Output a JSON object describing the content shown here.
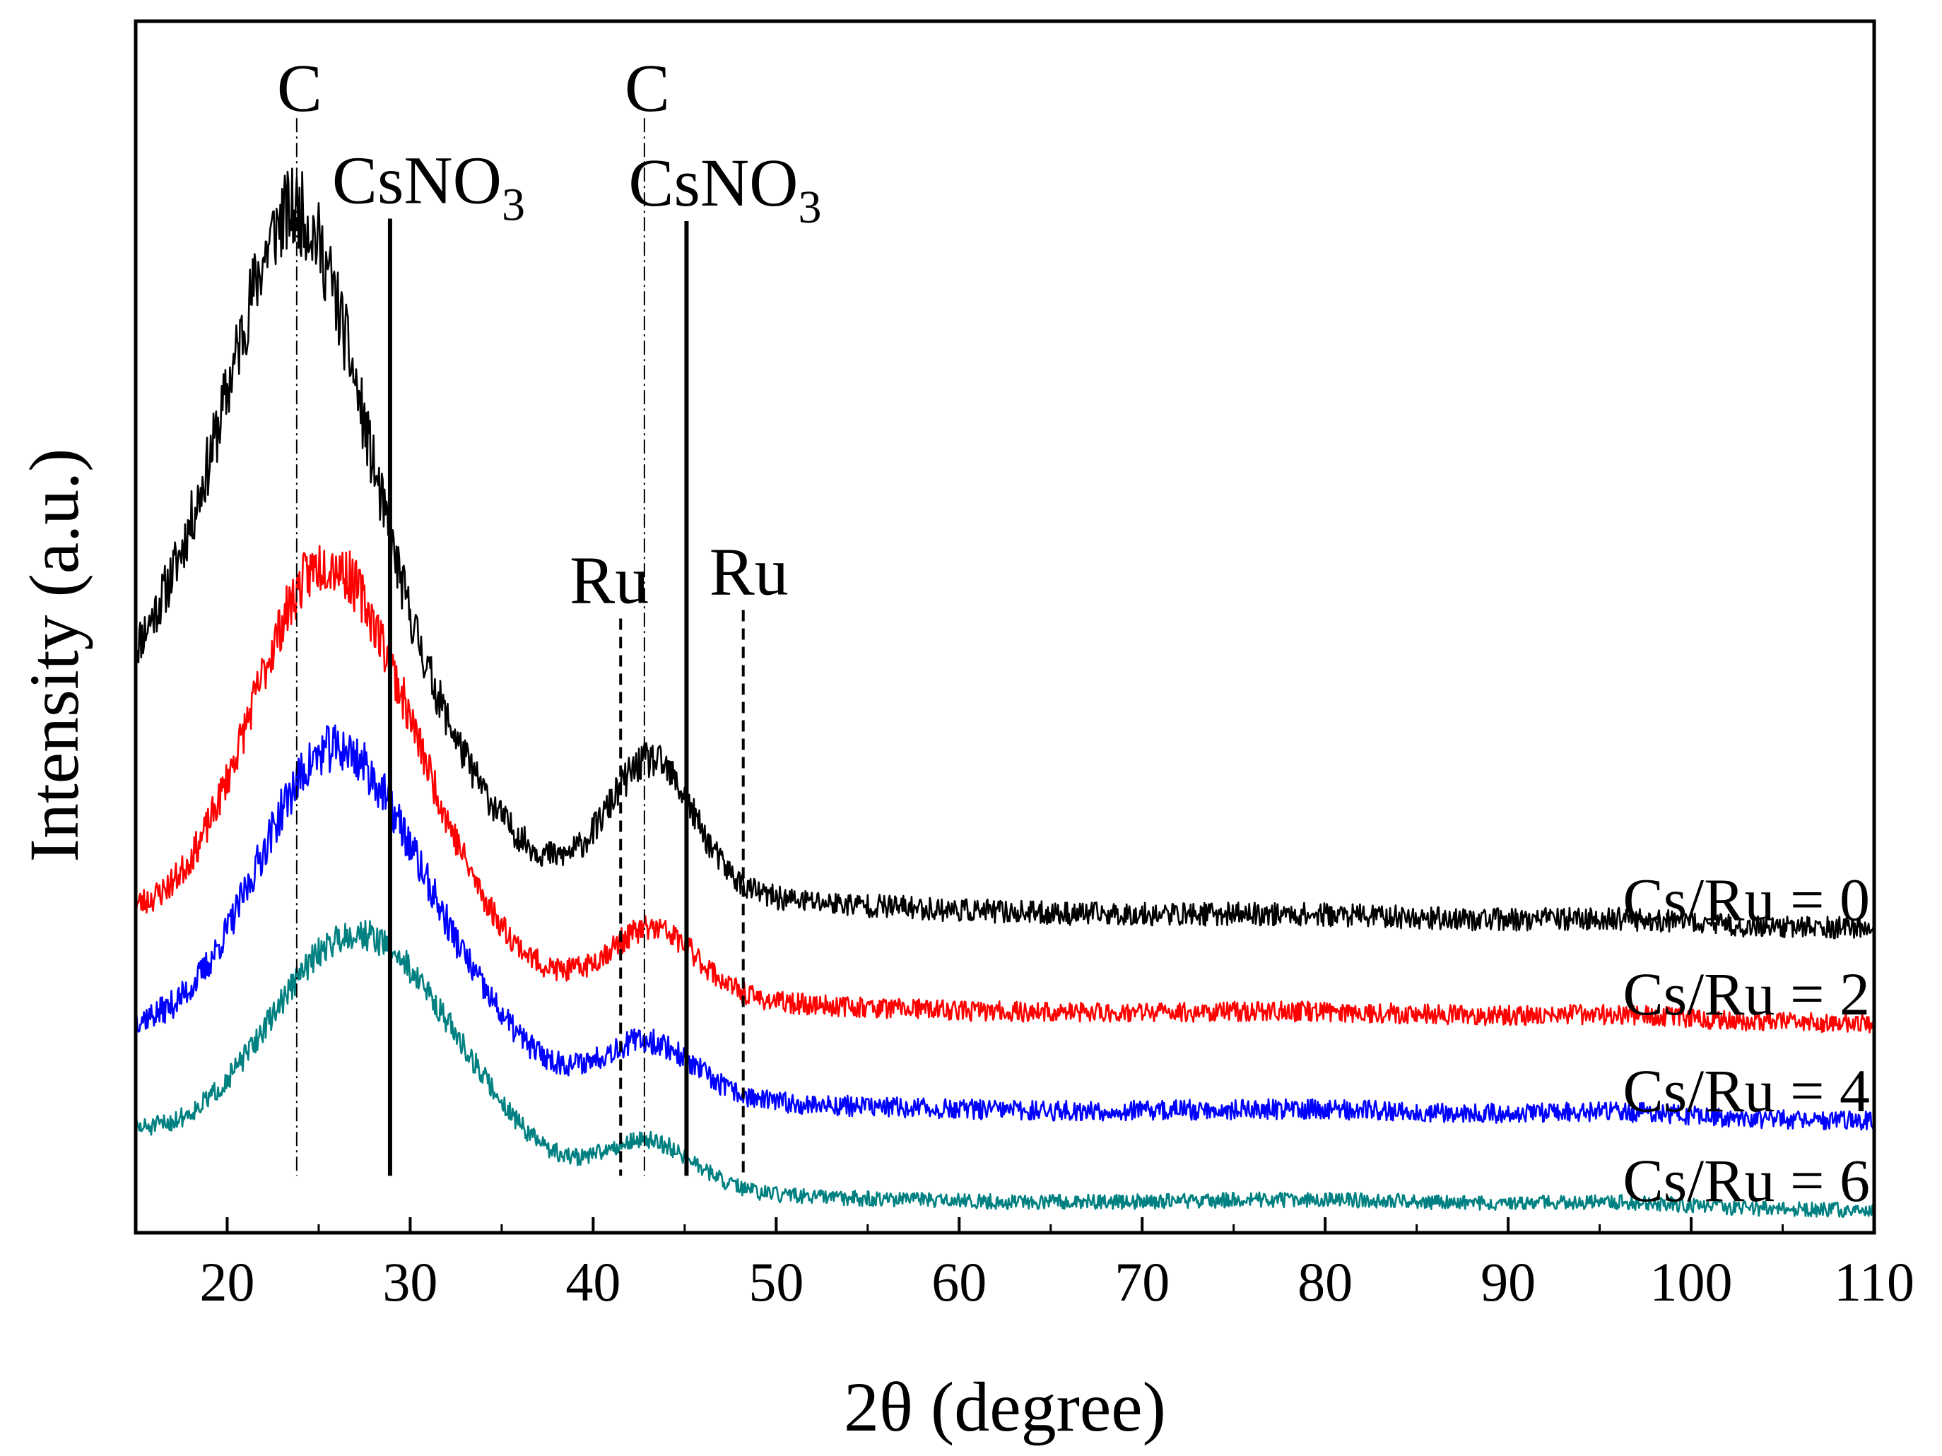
{
  "chart_data": {
    "type": "line",
    "title": "",
    "xlabel": "2θ (degree)",
    "ylabel": "Intensity (a.u.)",
    "xlim": [
      15,
      110
    ],
    "xticks": [
      20,
      30,
      40,
      50,
      60,
      70,
      80,
      90,
      100,
      110
    ],
    "minor_xticks": [
      15,
      25,
      35,
      45,
      55,
      65,
      75,
      85,
      95,
      105
    ],
    "ylim": [
      0,
      100
    ],
    "grid": false,
    "series": [
      {
        "name": "Cs/Ru = 0",
        "label": "Cs/Ru = 0",
        "color": "#000000",
        "baseline": 25.0,
        "noise": 0.9,
        "seed": 11,
        "peaks": [
          {
            "center": 23.8,
            "height": 48.0,
            "width": 3.6
          },
          {
            "center": 17.0,
            "height": 10.0,
            "width": 3.5
          },
          {
            "center": 43.2,
            "height": 10.5,
            "width": 2.3
          },
          {
            "center": 30.5,
            "height": 9.0,
            "width": 3.5
          }
        ],
        "tail": {
          "amplitude": 4.0,
          "decay": 22.0
        }
      },
      {
        "name": "Cs/Ru = 2",
        "label": "Cs/Ru = 2",
        "color": "#ff0000",
        "baseline": 17.2,
        "noise": 0.8,
        "seed": 23,
        "peaks": [
          {
            "center": 25.2,
            "height": 31.0,
            "width": 4.0
          },
          {
            "center": 43.3,
            "height": 5.5,
            "width": 2.4
          },
          {
            "center": 31.0,
            "height": 6.0,
            "width": 3.5
          }
        ],
        "tail": {
          "amplitude": 2.8,
          "decay": 22.0
        }
      },
      {
        "name": "Cs/Ru = 4",
        "label": "Cs/Ru = 4",
        "color": "#0000ff",
        "baseline": 9.2,
        "noise": 0.8,
        "seed": 37,
        "peaks": [
          {
            "center": 25.8,
            "height": 25.5,
            "width": 4.2
          },
          {
            "center": 43.0,
            "height": 4.5,
            "width": 2.5
          },
          {
            "center": 32.5,
            "height": 4.5,
            "width": 3.5
          }
        ],
        "tail": {
          "amplitude": 2.4,
          "decay": 22.0
        }
      },
      {
        "name": "Cs/Ru = 6",
        "label": "Cs/Ru = 6",
        "color": "#008080",
        "baseline": 1.8,
        "noise": 0.6,
        "seed": 51,
        "peaks": [
          {
            "center": 26.8,
            "height": 18.5,
            "width": 4.5
          },
          {
            "center": 43.0,
            "height": 4.0,
            "width": 2.5
          },
          {
            "center": 33.0,
            "height": 3.5,
            "width": 3.5
          }
        ],
        "tail": {
          "amplitude": 2.0,
          "decay": 22.0
        }
      }
    ],
    "reference_lines": [
      {
        "name": "C",
        "x": 23.8,
        "style": "dashdot",
        "y_top": 92.0,
        "label": "C",
        "label_part": "C"
      },
      {
        "name": "C",
        "x": 42.8,
        "style": "dashdot",
        "y_top": 92.0,
        "label": "C",
        "label_part": "C"
      },
      {
        "name": "CsNO3",
        "x": 28.9,
        "style": "solid",
        "y_top": 83.7,
        "label": "CsNO",
        "subscript": "3"
      },
      {
        "name": "CsNO3",
        "x": 45.1,
        "style": "solid",
        "y_top": 83.5,
        "label": "CsNO",
        "subscript": "3"
      },
      {
        "name": "Ru",
        "x": 41.5,
        "style": "dashed",
        "y_top": 50.7,
        "label": "Ru"
      },
      {
        "name": "Ru",
        "x": 48.2,
        "style": "dashed",
        "y_top": 51.4,
        "label": "Ru"
      }
    ],
    "reference_line_bottom": 4.7
  }
}
